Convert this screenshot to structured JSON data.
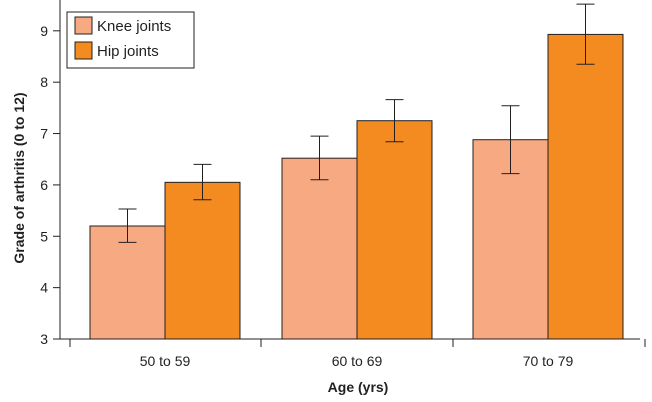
{
  "chart_data": {
    "type": "bar",
    "title": "",
    "xlabel": "Age (yrs)",
    "ylabel": "Grade of arthritis (0 to 12)",
    "categories": [
      "50 to 59",
      "60 to 69",
      "70 to 79"
    ],
    "ylim": [
      3,
      9.6
    ],
    "yticks": [
      3,
      4,
      5,
      6,
      7,
      8,
      9
    ],
    "grid": false,
    "legend": "top-left",
    "series": [
      {
        "name": "Knee joints",
        "color": "#f7a982",
        "values": [
          5.2,
          6.52,
          6.88
        ],
        "error_low": [
          4.88,
          6.1,
          6.22
        ],
        "error_high": [
          5.53,
          6.95,
          7.54
        ]
      },
      {
        "name": "Hip joints",
        "color": "#f48b20",
        "values": [
          6.05,
          7.25,
          8.93
        ],
        "error_low": [
          5.71,
          6.84,
          8.35
        ],
        "error_high": [
          6.4,
          7.66,
          9.52
        ]
      }
    ]
  }
}
